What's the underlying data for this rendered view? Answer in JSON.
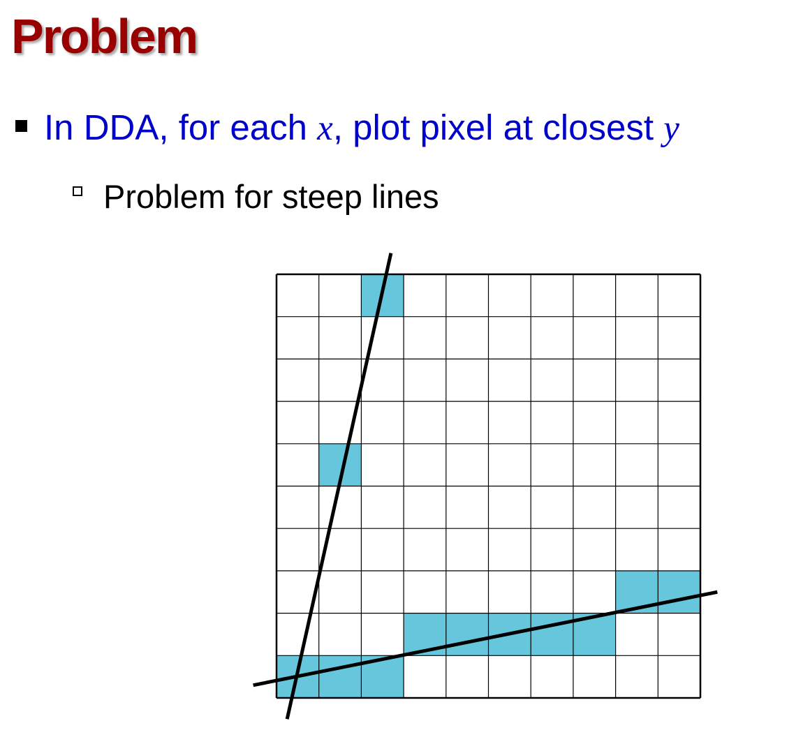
{
  "slide": {
    "title": "Problem",
    "bullet1": {
      "text_before": "In DDA, for each ",
      "var_x": "x",
      "text_middle": ", plot pixel at closest ",
      "var_y": "y"
    },
    "bullet2": {
      "text": "Problem for steep lines"
    }
  },
  "diagram": {
    "grid_columns": 10,
    "grid_rows": 10,
    "fill_color": "#66c6dc",
    "grid_line_color": "#000000",
    "filled_pixels": [
      {
        "col": 2,
        "row": 0
      },
      {
        "col": 1,
        "row": 4
      },
      {
        "col": 0,
        "row": 9
      },
      {
        "col": 1,
        "row": 9
      },
      {
        "col": 2,
        "row": 9
      },
      {
        "col": 3,
        "row": 8
      },
      {
        "col": 4,
        "row": 8
      },
      {
        "col": 5,
        "row": 8
      },
      {
        "col": 6,
        "row": 8
      },
      {
        "col": 7,
        "row": 8
      },
      {
        "col": 8,
        "row": 7
      },
      {
        "col": 9,
        "row": 7
      }
    ],
    "lines": [
      {
        "name": "steep-line",
        "from_col": 0.25,
        "from_row": 10.5,
        "to_col": 2.7,
        "to_row": -0.5
      },
      {
        "name": "shallow-line",
        "from_col": -0.55,
        "from_row": 9.7,
        "to_col": 10.4,
        "to_row": 7.5
      }
    ]
  }
}
